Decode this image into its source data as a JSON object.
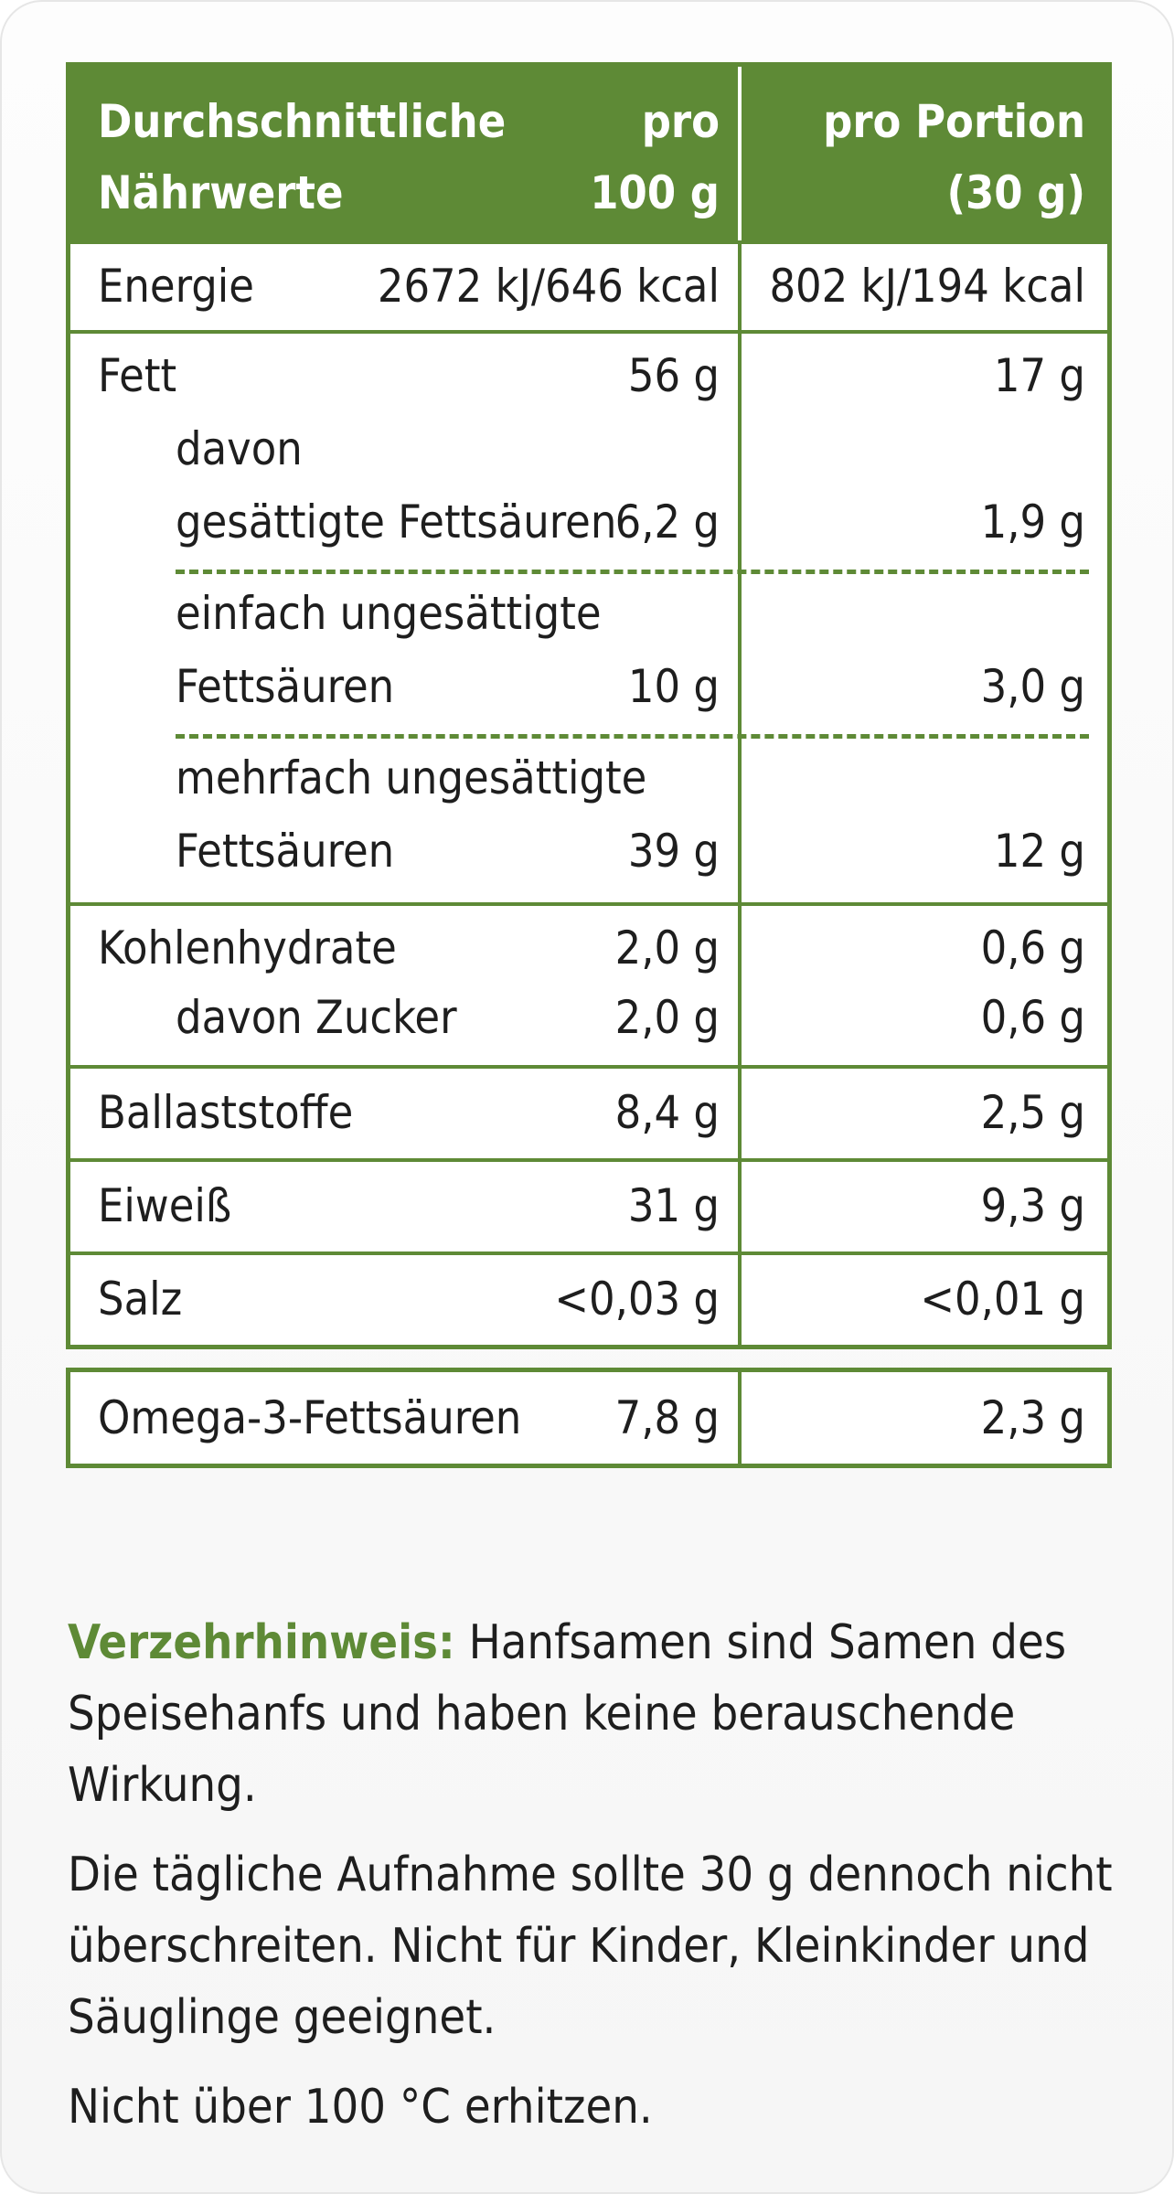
{
  "table": {
    "header": {
      "label_line1": "Durchschnittliche",
      "label_line2": "Nährwerte",
      "per100_line1": "pro",
      "per100_line2": "100 g",
      "portion_line1": "pro Portion",
      "portion_line2": "(30 g)"
    },
    "energie": {
      "label": "Energie",
      "v100": "2672 kJ/646 kcal",
      "vport": "802 kJ/194 kcal"
    },
    "fett": {
      "label": "Fett",
      "v100": "56 g",
      "vport": "17 g"
    },
    "gesaettigte": {
      "label1": "davon",
      "label2": "gesättigte Fettsäuren",
      "v100": "6,2 g",
      "vport": "1,9 g"
    },
    "einfach": {
      "label1": "einfach ungesättigte",
      "label2": "Fettsäuren",
      "v100": "10 g",
      "vport": "3,0 g"
    },
    "mehrfach": {
      "label1": "mehrfach ungesättigte",
      "label2": "Fettsäuren",
      "v100": "39 g",
      "vport": "12 g"
    },
    "kohlenhydrate": {
      "label": "Kohlenhydrate",
      "v100": "2,0 g",
      "vport": "0,6 g"
    },
    "zucker": {
      "label": "davon Zucker",
      "v100": "2,0 g",
      "vport": "0,6 g"
    },
    "ballaststoffe": {
      "label": "Ballaststoffe",
      "v100": "8,4 g",
      "vport": "2,5 g"
    },
    "eiweiss": {
      "label": "Eiweiß",
      "v100": "31 g",
      "vport": "9,3 g"
    },
    "salz": {
      "label": "Salz",
      "v100": "<0,03 g",
      "vport": "<0,01 g"
    }
  },
  "omega": {
    "label": "Omega-3-Fettsäuren",
    "v100": "7,8 g",
    "vport": "2,3 g"
  },
  "notes": {
    "hint_label": "Verzehrhinweis:",
    "hint_text": "Hanfsamen sind Samen des Speisehanfs und haben keine berauschende Wirkung.",
    "daily": "Die tägliche Aufnahme sollte 30 g dennoch nicht überschreiten. Nicht für Kinder, Kleinkinder und Säuglinge geeignet.",
    "heat": "Nicht über 100 °C erhitzen."
  },
  "colors": {
    "accent": "#5e8a36",
    "text": "#1e1e1e"
  }
}
